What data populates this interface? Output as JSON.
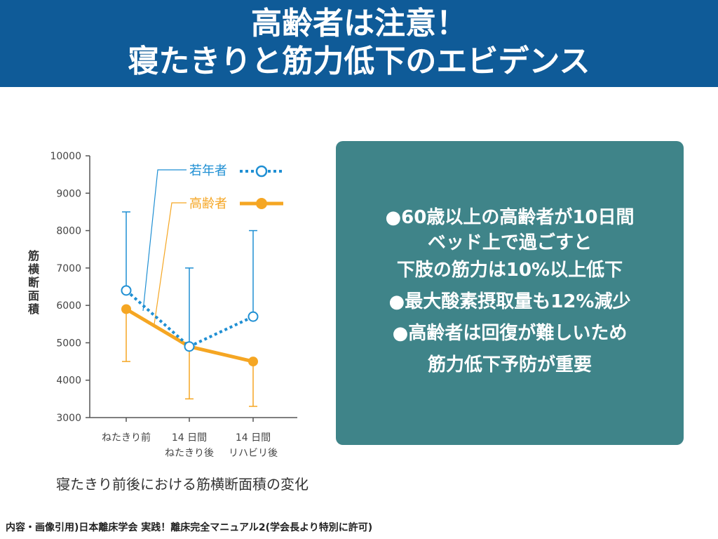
{
  "header": {
    "title_line1": "高齢者は注意！",
    "title_line2": "寝たきりと筋力低下のエビデンス"
  },
  "chart_data": {
    "type": "line",
    "categories": [
      {
        "line1": "ねたきり前",
        "line2": ""
      },
      {
        "line1": "14 日間",
        "line2": "ねたきり後"
      },
      {
        "line1": "14 日間",
        "line2": "リハビリ後"
      }
    ],
    "ylabel": [
      "筋",
      "横",
      "断",
      "面",
      "積"
    ],
    "ylim": [
      3000,
      10000
    ],
    "yticks": [
      3000,
      4000,
      5000,
      6000,
      7000,
      8000,
      9000,
      10000
    ],
    "grid": false,
    "legend_position": "top-right",
    "series": [
      {
        "name": "若年者",
        "values": [
          6400,
          4900,
          5700
        ],
        "error_upper": [
          8500,
          7000,
          8000
        ],
        "error_lower": [
          null,
          null,
          null
        ],
        "color": "#1f8fd3",
        "line_style": "dotted",
        "marker": "open-circle"
      },
      {
        "name": "高齢者",
        "values": [
          5900,
          4900,
          4500
        ],
        "error_upper": [
          null,
          null,
          null
        ],
        "error_lower": [
          4500,
          3500,
          3300
        ],
        "color": "#f5a623",
        "line_style": "solid",
        "marker": "filled-circle"
      }
    ]
  },
  "caption": "寝たきり前後における筋横断面積の変化",
  "panel": {
    "color": "#3f8489",
    "lines": [
      "●60歳以上の高齢者が10日間",
      "ベッド上で過ごすと",
      "下肢の筋力は10%以上低下",
      "●最大酸素摂取量も12%減少",
      "●高齢者は回復が難しいため",
      "筋力低下予防が重要"
    ]
  },
  "footer": "内容・画像引用)日本離床学会 実践！離床完全マニュアル2(学会長より特別に許可)"
}
